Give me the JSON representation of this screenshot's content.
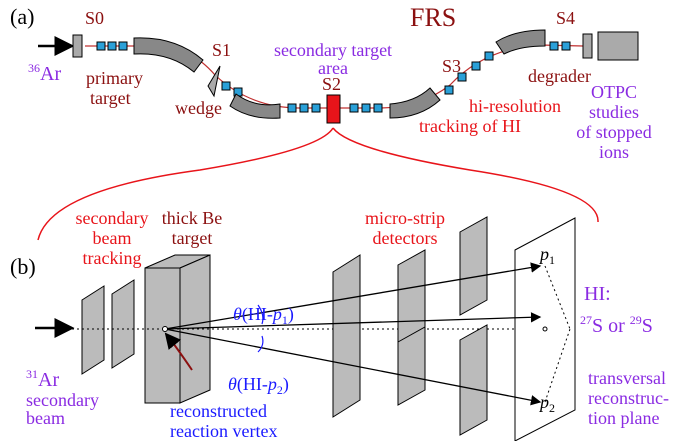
{
  "panel_a": {
    "label": "(a)",
    "title": "FRS",
    "stations": [
      "S0",
      "S1",
      "S2",
      "S3",
      "S4"
    ],
    "beam": [
      "36",
      "Ar"
    ],
    "primary_target": [
      "primary",
      "target"
    ],
    "wedge": "wedge",
    "secondary_target_area": [
      "secondary target",
      "area"
    ],
    "tracking": [
      "hi-resolution",
      "tracking of HI"
    ],
    "degrader": "degrader",
    "otpc": [
      "OTPC",
      "studies",
      "of stopped",
      "ions"
    ]
  },
  "panel_b": {
    "label": "(b)",
    "beam_tracking": [
      "secondary",
      "beam",
      "tracking"
    ],
    "target": [
      "thick Be",
      "target"
    ],
    "detectors": [
      "micro-strip",
      "detectors"
    ],
    "angle_1": [
      "θ",
      "(HI-",
      "p",
      "1",
      ")"
    ],
    "angle_2": [
      "θ",
      "(HI-",
      "p",
      "2",
      ")"
    ],
    "p1": [
      "p",
      "1"
    ],
    "p2": [
      "p",
      "2"
    ],
    "hi": "HI:",
    "products": [
      "27",
      "S or ",
      "29",
      "S"
    ],
    "beam": [
      "31",
      "Ar"
    ],
    "beam_text": [
      "secondary",
      "beam"
    ],
    "vertex": [
      "reconstructed",
      "reaction vertex"
    ],
    "plane": [
      "transversal",
      "reconstruc-",
      "tion plane"
    ]
  }
}
